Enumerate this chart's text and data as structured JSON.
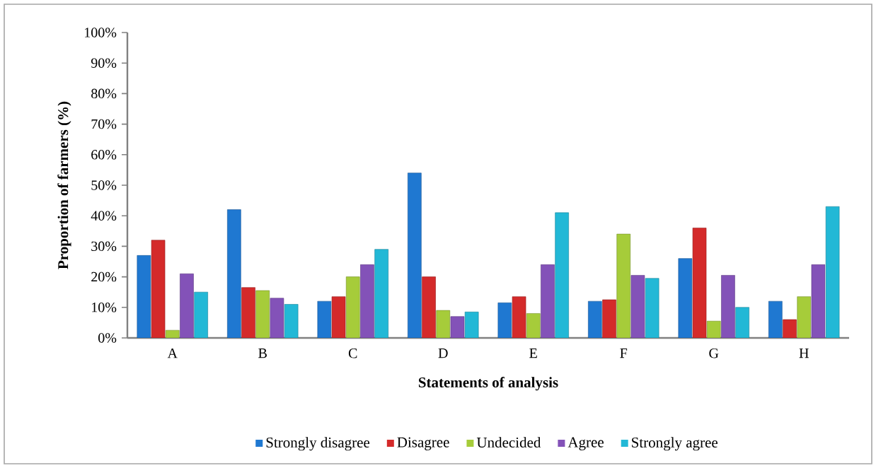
{
  "chart_data": {
    "type": "bar",
    "xlabel": "Statements of analysis",
    "ylabel": "Proportion of farmers (%)",
    "categories": [
      "A",
      "B",
      "C",
      "D",
      "E",
      "F",
      "G",
      "H"
    ],
    "series": [
      {
        "name": "Strongly disagree",
        "color": "#1f78d1",
        "values": [
          27,
          42,
          12,
          54,
          11.5,
          12,
          26,
          12
        ]
      },
      {
        "name": "Disagree",
        "color": "#d42a2a",
        "values": [
          32,
          16.5,
          13.5,
          20,
          13.5,
          12.5,
          36,
          6
        ]
      },
      {
        "name": "Undecided",
        "color": "#a6cc3a",
        "values": [
          2.5,
          15.5,
          20,
          9,
          8,
          34,
          5.5,
          13.5
        ]
      },
      {
        "name": "Agree",
        "color": "#8352b8",
        "values": [
          21,
          13,
          24,
          7,
          24,
          20.5,
          20.5,
          24
        ]
      },
      {
        "name": "Strongly agree",
        "color": "#22b8d6",
        "values": [
          15,
          11,
          29,
          8.5,
          41,
          19.5,
          10,
          43
        ]
      }
    ],
    "ylim": [
      0,
      100
    ],
    "yticks": [
      {
        "value": 0,
        "label": "0%"
      },
      {
        "value": 10,
        "label": "10%"
      },
      {
        "value": 20,
        "label": "20%"
      },
      {
        "value": 30,
        "label": "30%"
      },
      {
        "value": 40,
        "label": "40%"
      },
      {
        "value": 50,
        "label": "50%"
      },
      {
        "value": 60,
        "label": "60%"
      },
      {
        "value": 70,
        "label": "70%"
      },
      {
        "value": 80,
        "label": "80%"
      },
      {
        "value": 90,
        "label": "90%"
      },
      {
        "value": 100,
        "label": "100%"
      }
    ],
    "legend": "bottom"
  }
}
